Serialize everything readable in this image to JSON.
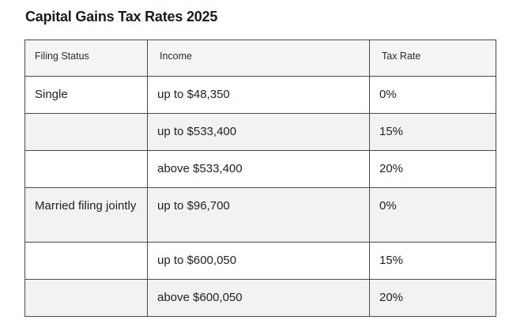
{
  "title": "Capital Gains Tax Rates 2025",
  "table": {
    "headers": [
      "Filing Status",
      "Income",
      "Tax Rate"
    ],
    "rows": [
      {
        "status": "Single",
        "income": "up to $48,350",
        "rate": "0%"
      },
      {
        "status": "",
        "income": "up to $533,400",
        "rate": "15%"
      },
      {
        "status": "",
        "income": "above $533,400",
        "rate": "20%"
      },
      {
        "status": "Married filing jointly",
        "income": "up to $96,700",
        "rate": "0%"
      },
      {
        "status": "",
        "income": "up to $600,050",
        "rate": "15%"
      },
      {
        "status": "",
        "income": "above $600,050",
        "rate": "20%"
      }
    ]
  }
}
